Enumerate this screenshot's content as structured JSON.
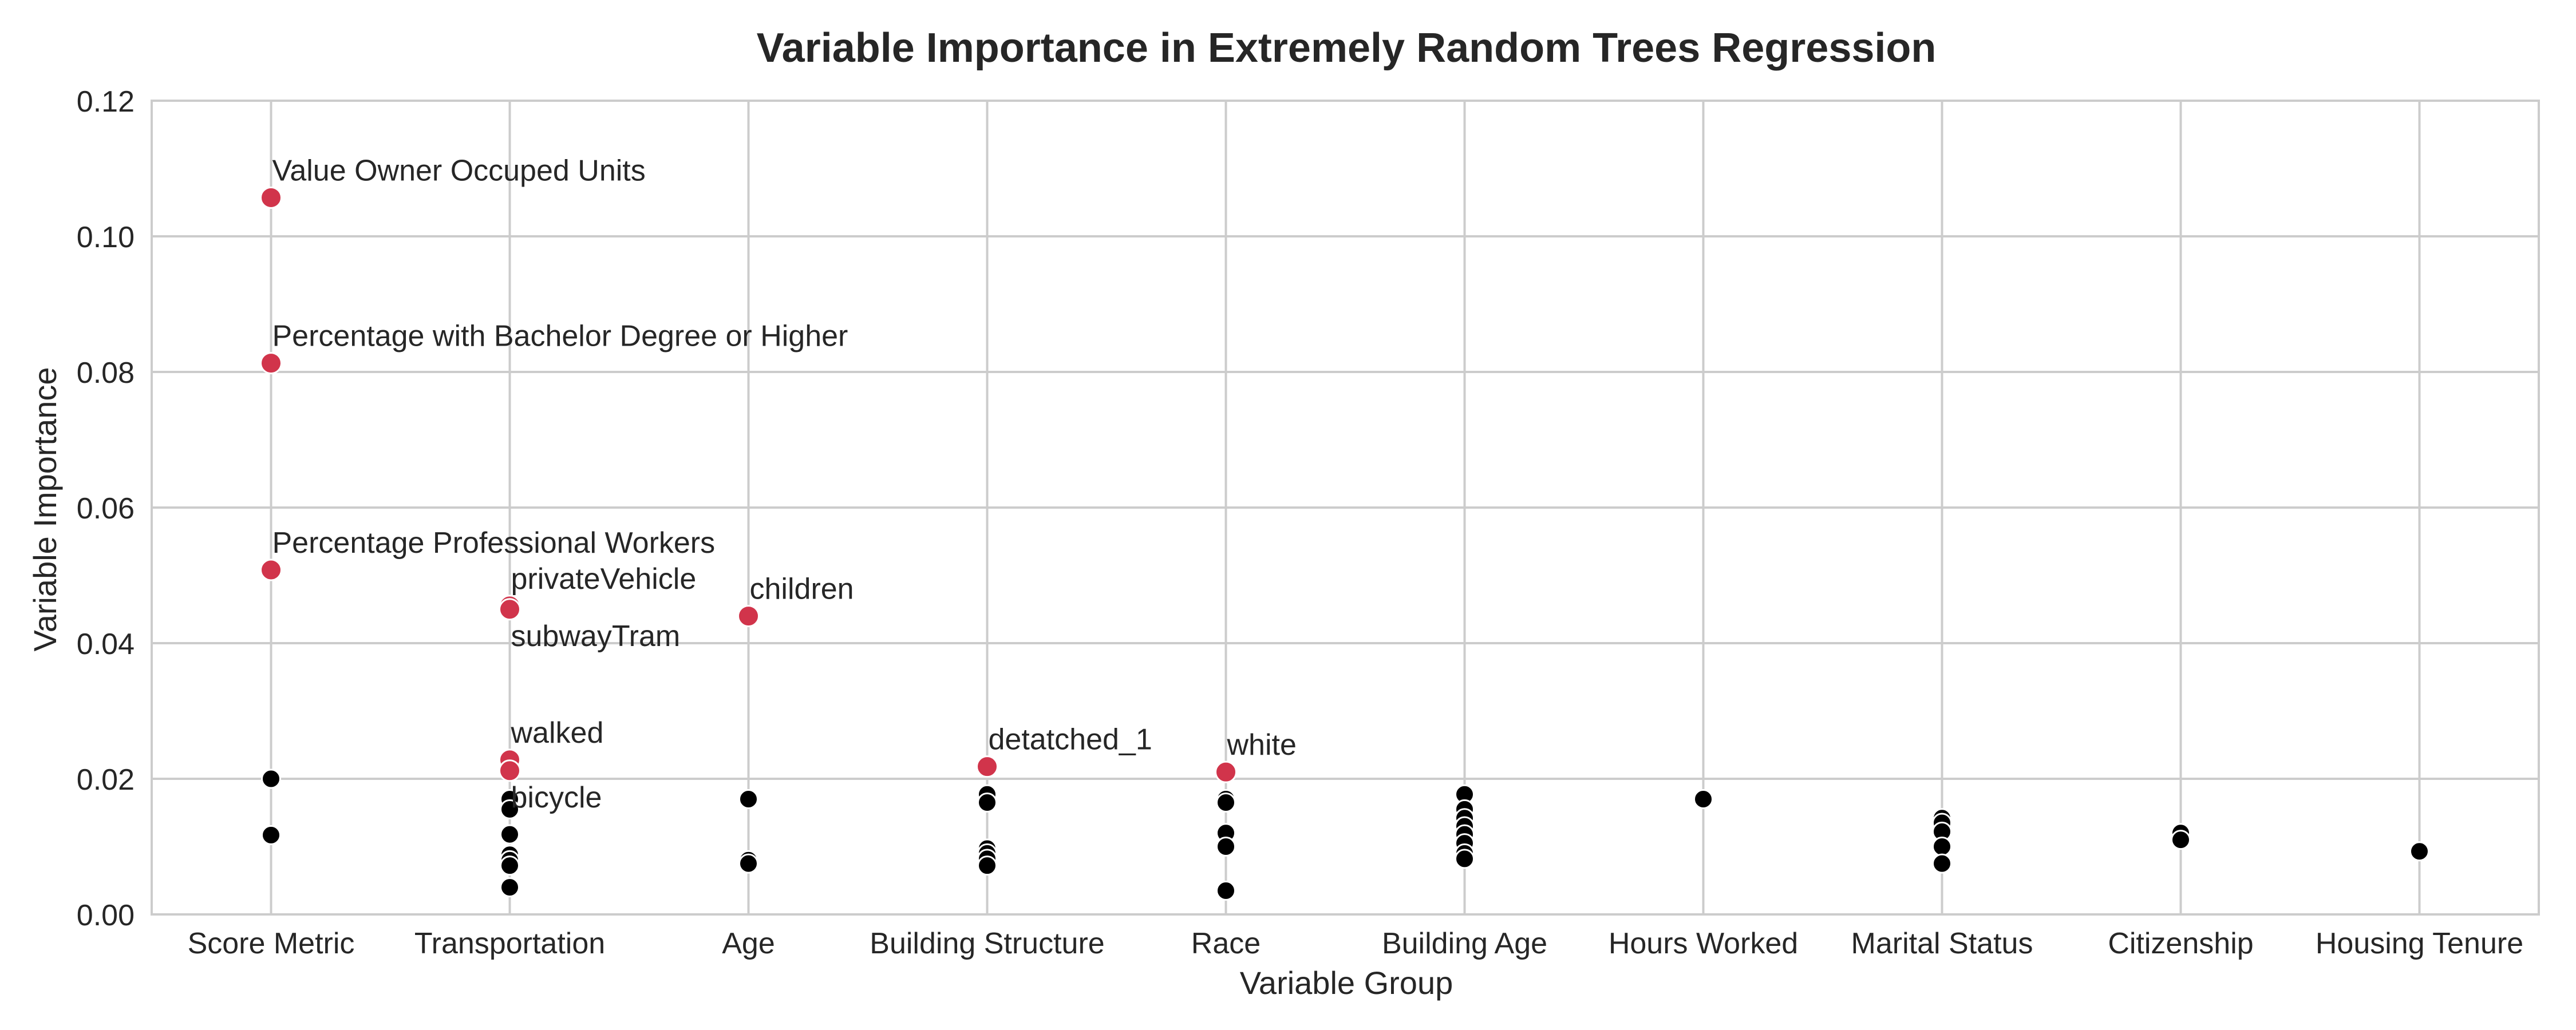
{
  "chart_data": {
    "type": "scatter",
    "title": "Variable Importance in Extremely Random Trees Regression",
    "xlabel": "Variable Group",
    "ylabel": "Variable Importance",
    "categories": [
      "Score Metric",
      "Transportation",
      "Age",
      "Building Structure",
      "Race",
      "Building Age",
      "Hours Worked",
      "Marital Status",
      "Citizenship",
      "Housing Tenure"
    ],
    "ylim": [
      0,
      0.12
    ],
    "yticks": [
      "0.00",
      "0.02",
      "0.04",
      "0.06",
      "0.08",
      "0.10",
      "0.12"
    ],
    "grid": true,
    "colors": {
      "highlight": "#d1344b",
      "regular": "#000000",
      "grid": "#cccccc",
      "text": "#262626"
    },
    "highlighted_points": [
      {
        "category": "Score Metric",
        "y": 0.1057,
        "label": "Value Owner Occuped Units"
      },
      {
        "category": "Score Metric",
        "y": 0.0813,
        "label": "Percentage with Bachelor Degree or Higher"
      },
      {
        "category": "Score Metric",
        "y": 0.0508,
        "label": "Percentage Professional Workers"
      },
      {
        "category": "Transportation",
        "y": 0.0455,
        "label": "privateVehicle"
      },
      {
        "category": "Transportation",
        "y": 0.045,
        "label": "subwayTram"
      },
      {
        "category": "Age",
        "y": 0.044,
        "label": "children"
      },
      {
        "category": "Transportation",
        "y": 0.0228,
        "label": "walked"
      },
      {
        "category": "Transportation",
        "y": 0.0212,
        "label": "bicycle"
      },
      {
        "category": "Building Structure",
        "y": 0.0218,
        "label": "detatched_1"
      },
      {
        "category": "Race",
        "y": 0.021,
        "label": "white"
      }
    ],
    "other_points": [
      {
        "category": "Score Metric",
        "values": [
          0.02,
          0.0117
        ]
      },
      {
        "category": "Transportation",
        "values": [
          0.017,
          0.0155,
          0.0118,
          0.0088,
          0.008,
          0.0072,
          0.004
        ]
      },
      {
        "category": "Age",
        "values": [
          0.017,
          0.008,
          0.0075
        ]
      },
      {
        "category": "Building Structure",
        "values": [
          0.0177,
          0.0165,
          0.0097,
          0.009,
          0.0082,
          0.0072
        ]
      },
      {
        "category": "Race",
        "values": [
          0.017,
          0.0165,
          0.012,
          0.01,
          0.0035
        ]
      },
      {
        "category": "Building Age",
        "values": [
          0.0177,
          0.0155,
          0.0142,
          0.013,
          0.0118,
          0.0105,
          0.009,
          0.0082
        ]
      },
      {
        "category": "Hours Worked",
        "values": [
          0.017
        ]
      },
      {
        "category": "Marital Status",
        "values": [
          0.0142,
          0.0135,
          0.0122,
          0.01,
          0.0075
        ]
      },
      {
        "category": "Citizenship",
        "values": [
          0.012,
          0.011
        ]
      },
      {
        "category": "Housing Tenure",
        "values": [
          0.0093
        ]
      }
    ]
  }
}
